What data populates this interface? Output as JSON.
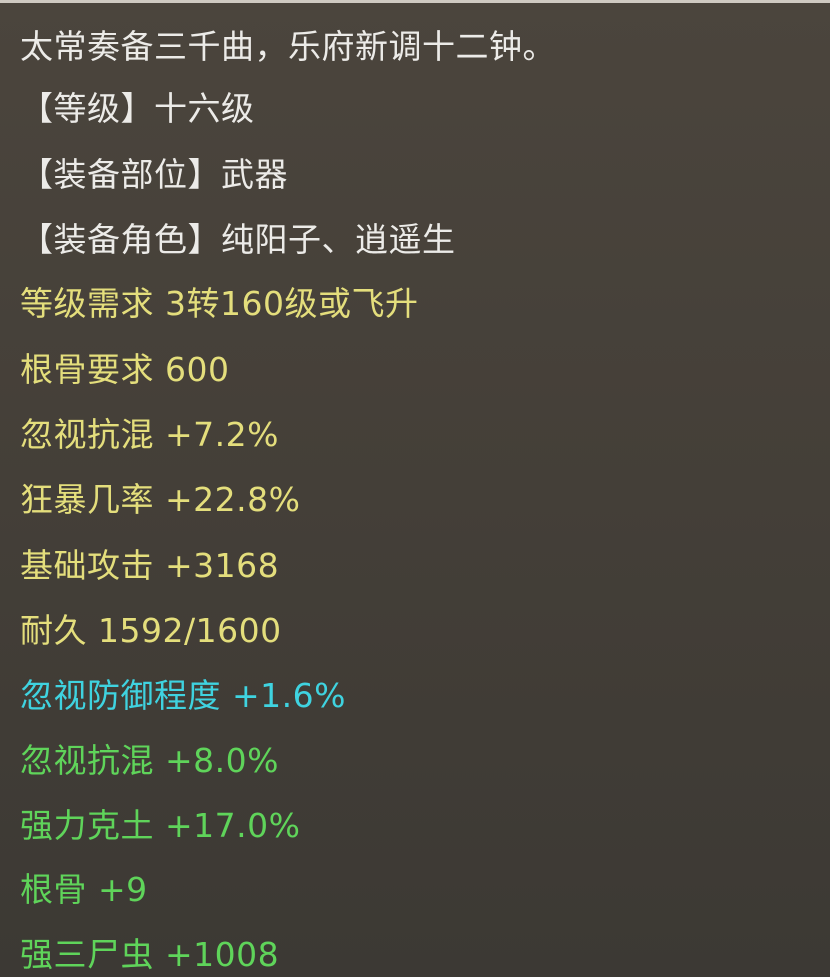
{
  "colors": {
    "background": "#48423b",
    "description": "#ecebe8",
    "requirement": "#e4de7c",
    "special": "#3fd3e0",
    "bonus": "#5fd45a"
  },
  "tooltip": {
    "description": "太常奏备三千曲，乐府新调十二钟。",
    "info": [
      "【等级】十六级",
      "【装备部位】武器",
      "【装备角色】纯阳子、逍遥生"
    ],
    "base_stats": [
      "等级需求 3转160级或飞升",
      "根骨要求 600",
      "忽视抗混 +7.2%",
      "狂暴几率 +22.8%",
      "基础攻击 +3168",
      "耐久 1592/1600"
    ],
    "special_stats": [
      "忽视防御程度 +1.6%"
    ],
    "bonus_stats": [
      "忽视抗混 +8.0%",
      "强力克土 +17.0%",
      "根骨 +9",
      "强三尸虫 +1008"
    ]
  }
}
